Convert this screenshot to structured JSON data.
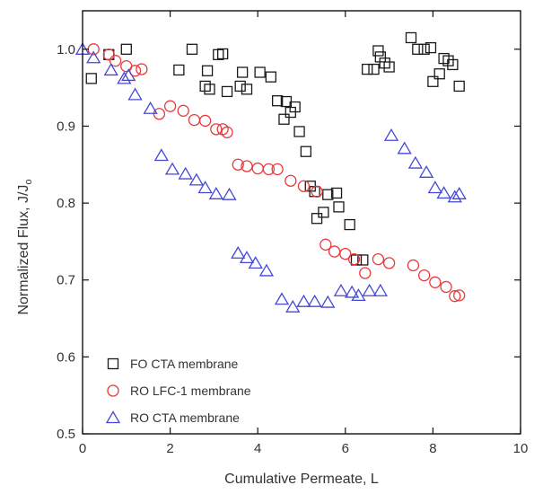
{
  "chart_data": {
    "type": "scatter",
    "title": "",
    "xlabel": "Cumulative Permeate, L",
    "ylabel": "Normalized Flux, J/J",
    "ylabel_subscript": "o",
    "xlim": [
      0,
      10
    ],
    "ylim": [
      0.5,
      1.05
    ],
    "xticks": [
      0,
      2,
      4,
      6,
      8,
      10
    ],
    "yticks": [
      0.5,
      0.6,
      0.7,
      0.8,
      0.9,
      1.0
    ],
    "xtick_labels": [
      "0",
      "2",
      "4",
      "6",
      "8",
      "10"
    ],
    "ytick_labels": [
      "0.5",
      "0.6",
      "0.7",
      "0.8",
      "0.9",
      "1.0"
    ],
    "grid": false,
    "legend_position": "bottom-left",
    "series": [
      {
        "name": "FO CTA membrane",
        "marker": "square",
        "color": "#1a1a1a",
        "points": [
          [
            0.2,
            0.962
          ],
          [
            0.6,
            0.993
          ],
          [
            1.0,
            1.0
          ],
          [
            2.2,
            0.973
          ],
          [
            2.5,
            1.0
          ],
          [
            2.8,
            0.952
          ],
          [
            2.9,
            0.948
          ],
          [
            2.85,
            0.972
          ],
          [
            3.1,
            0.993
          ],
          [
            3.2,
            0.994
          ],
          [
            3.3,
            0.945
          ],
          [
            3.6,
            0.952
          ],
          [
            3.65,
            0.97
          ],
          [
            3.75,
            0.948
          ],
          [
            4.05,
            0.97
          ],
          [
            4.3,
            0.964
          ],
          [
            4.45,
            0.933
          ],
          [
            4.6,
            0.909
          ],
          [
            4.65,
            0.932
          ],
          [
            4.75,
            0.918
          ],
          [
            4.85,
            0.925
          ],
          [
            4.95,
            0.893
          ],
          [
            5.1,
            0.867
          ],
          [
            5.2,
            0.822
          ],
          [
            5.3,
            0.815
          ],
          [
            5.35,
            0.78
          ],
          [
            5.5,
            0.788
          ],
          [
            5.6,
            0.811
          ],
          [
            5.8,
            0.813
          ],
          [
            5.85,
            0.795
          ],
          [
            6.1,
            0.772
          ],
          [
            6.25,
            0.726
          ],
          [
            6.4,
            0.726
          ],
          [
            6.5,
            0.974
          ],
          [
            6.65,
            0.974
          ],
          [
            6.75,
            0.998
          ],
          [
            6.8,
            0.99
          ],
          [
            6.9,
            0.982
          ],
          [
            7.0,
            0.977
          ],
          [
            7.5,
            1.015
          ],
          [
            7.65,
            1.0
          ],
          [
            7.8,
            1.0
          ],
          [
            7.95,
            1.002
          ],
          [
            8.0,
            0.958
          ],
          [
            8.15,
            0.968
          ],
          [
            8.25,
            0.988
          ],
          [
            8.35,
            0.985
          ],
          [
            8.45,
            0.98
          ],
          [
            8.6,
            0.952
          ]
        ]
      },
      {
        "name": "RO LFC-1 membrane",
        "marker": "circle",
        "color": "#e8393c",
        "points": [
          [
            0.25,
            1.0
          ],
          [
            0.6,
            0.993
          ],
          [
            0.75,
            0.985
          ],
          [
            1.0,
            0.978
          ],
          [
            1.2,
            0.972
          ],
          [
            1.35,
            0.974
          ],
          [
            1.75,
            0.916
          ],
          [
            2.0,
            0.926
          ],
          [
            2.3,
            0.92
          ],
          [
            2.55,
            0.908
          ],
          [
            2.8,
            0.907
          ],
          [
            3.05,
            0.896
          ],
          [
            3.2,
            0.896
          ],
          [
            3.3,
            0.892
          ],
          [
            3.55,
            0.85
          ],
          [
            3.75,
            0.848
          ],
          [
            4.0,
            0.845
          ],
          [
            4.25,
            0.844
          ],
          [
            4.45,
            0.844
          ],
          [
            4.75,
            0.829
          ],
          [
            5.05,
            0.822
          ],
          [
            5.35,
            0.815
          ],
          [
            5.55,
            0.746
          ],
          [
            5.75,
            0.737
          ],
          [
            6.0,
            0.734
          ],
          [
            6.2,
            0.727
          ],
          [
            6.45,
            0.709
          ],
          [
            6.75,
            0.727
          ],
          [
            7.0,
            0.722
          ],
          [
            7.55,
            0.719
          ],
          [
            7.8,
            0.706
          ],
          [
            8.05,
            0.697
          ],
          [
            8.3,
            0.691
          ],
          [
            8.5,
            0.679
          ],
          [
            8.6,
            0.68
          ]
        ]
      },
      {
        "name": "RO CTA membrane",
        "marker": "triangle",
        "color": "#4548d6",
        "points": [
          [
            0.0,
            1.0
          ],
          [
            0.25,
            0.989
          ],
          [
            0.65,
            0.973
          ],
          [
            0.95,
            0.962
          ],
          [
            1.05,
            0.966
          ],
          [
            1.2,
            0.941
          ],
          [
            1.55,
            0.923
          ],
          [
            1.8,
            0.862
          ],
          [
            2.05,
            0.844
          ],
          [
            2.35,
            0.838
          ],
          [
            2.6,
            0.83
          ],
          [
            2.8,
            0.82
          ],
          [
            3.05,
            0.812
          ],
          [
            3.35,
            0.811
          ],
          [
            3.55,
            0.735
          ],
          [
            3.75,
            0.729
          ],
          [
            3.95,
            0.722
          ],
          [
            4.2,
            0.712
          ],
          [
            4.55,
            0.675
          ],
          [
            4.8,
            0.665
          ],
          [
            5.05,
            0.672
          ],
          [
            5.3,
            0.672
          ],
          [
            5.6,
            0.671
          ],
          [
            5.9,
            0.686
          ],
          [
            6.15,
            0.684
          ],
          [
            6.3,
            0.68
          ],
          [
            6.55,
            0.686
          ],
          [
            6.8,
            0.686
          ],
          [
            7.05,
            0.888
          ],
          [
            7.35,
            0.871
          ],
          [
            7.6,
            0.852
          ],
          [
            7.85,
            0.84
          ],
          [
            8.05,
            0.82
          ],
          [
            8.25,
            0.813
          ],
          [
            8.5,
            0.808
          ],
          [
            8.6,
            0.812
          ]
        ]
      }
    ]
  }
}
